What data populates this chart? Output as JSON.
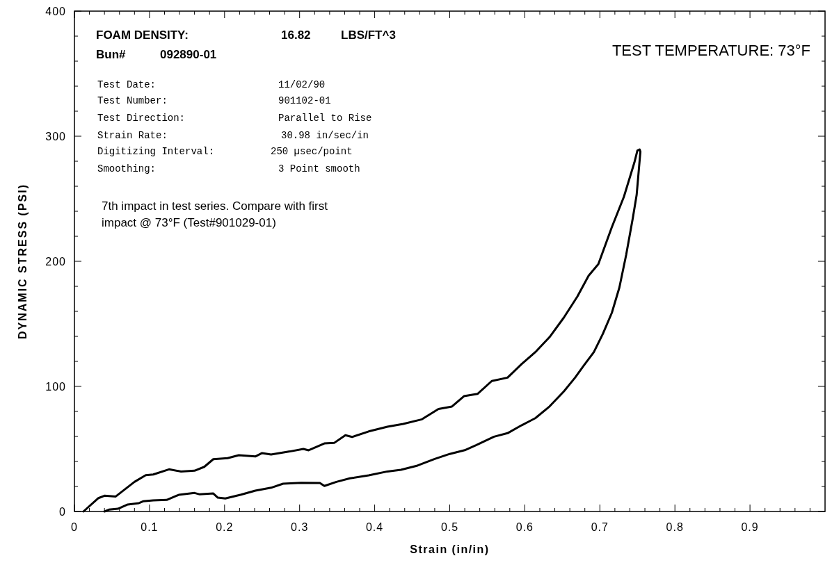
{
  "chart_data": {
    "type": "line",
    "xlabel": "Strain (in/in)",
    "ylabel": "DYNAMIC STRESS (PSI)",
    "annotations": [
      "FOAM DENSITY:",
      "16.82",
      "LBS/FT^3",
      "Bun#",
      "092890-01",
      "Test Date:",
      "11/02/90",
      "Test Number:",
      "901102-01",
      "Test Direction:",
      "Parallel to Rise",
      "Strain Rate:",
      "30.98 in/sec/in",
      "Digitizing Interval:",
      "250 µsec/point",
      "Smoothing:",
      "3 Point smooth",
      "7th impact in test series. Compare with first",
      "impact @ 73°F (Test#901029-01)",
      "TEST TEMPERATURE: 73°F"
    ],
    "xlim": [
      0,
      1
    ],
    "ylim": [
      0,
      400
    ],
    "xticks": [
      0,
      {
        "value": 0.02,
        "label": null
      },
      {
        "value": 0.04,
        "label": null
      },
      {
        "value": 0.06,
        "label": null
      },
      {
        "value": 0.08,
        "label": null
      },
      0.1,
      {
        "value": 0.12,
        "label": null
      },
      {
        "value": 0.14,
        "label": null
      },
      {
        "value": 0.16,
        "label": null
      },
      {
        "value": 0.18,
        "label": null
      },
      0.2,
      {
        "value": 0.22,
        "label": null
      },
      {
        "value": 0.24,
        "label": null
      },
      {
        "value": 0.26,
        "label": null
      },
      {
        "value": 0.28,
        "label": null
      },
      0.3,
      {
        "value": 0.32,
        "label": null
      },
      {
        "value": 0.34,
        "label": null
      },
      {
        "value": 0.36,
        "label": null
      },
      {
        "value": 0.38,
        "label": null
      },
      0.4,
      {
        "value": 0.42,
        "label": null
      },
      {
        "value": 0.44,
        "label": null
      },
      {
        "value": 0.46,
        "label": null
      },
      {
        "value": 0.48,
        "label": null
      },
      0.5,
      {
        "value": 0.52,
        "label": null
      },
      {
        "value": 0.54,
        "label": null
      },
      {
        "value": 0.56,
        "label": null
      },
      {
        "value": 0.58,
        "label": null
      },
      0.6,
      {
        "value": 0.62,
        "label": null
      },
      {
        "value": 0.64,
        "label": null
      },
      {
        "value": 0.66,
        "label": null
      },
      {
        "value": 0.68,
        "label": null
      },
      0.7,
      {
        "value": 0.72,
        "label": null
      },
      {
        "value": 0.74,
        "label": null
      },
      {
        "value": 0.76,
        "label": null
      },
      {
        "value": 0.78,
        "label": null
      },
      0.8,
      {
        "value": 0.82,
        "label": null
      },
      {
        "value": 0.84,
        "label": null
      },
      {
        "value": 0.86,
        "label": null
      },
      {
        "value": 0.88,
        "label": null
      },
      0.9,
      {
        "value": 0.92,
        "label": null
      },
      {
        "value": 0.94,
        "label": null
      },
      {
        "value": 0.96,
        "label": null
      },
      {
        "value": 0.98,
        "label": null
      }
    ],
    "yticks": [
      0,
      {
        "value": 20,
        "label": null
      },
      {
        "value": 40,
        "label": null
      },
      {
        "value": 60,
        "label": null
      },
      {
        "value": 80,
        "label": null
      },
      100,
      {
        "value": 120,
        "label": null
      },
      {
        "value": 140,
        "label": null
      },
      {
        "value": 160,
        "label": null
      },
      {
        "value": 180,
        "label": null
      },
      200,
      {
        "value": 220,
        "label": null
      },
      {
        "value": 240,
        "label": null
      },
      {
        "value": 260,
        "label": null
      },
      {
        "value": 280,
        "label": null
      },
      300,
      {
        "value": 320,
        "label": null
      },
      {
        "value": 340,
        "label": null
      },
      {
        "value": 360,
        "label": null
      },
      {
        "value": 380,
        "label": null
      },
      400
    ],
    "marker": "none",
    "line_style": "solid",
    "series": [
      {
        "color": "#000000",
        "x": [
          0.012,
          0.032,
          0.04,
          0.055,
          0.08,
          0.095,
          0.105,
          0.126,
          0.142,
          0.16,
          0.173,
          0.185,
          0.204,
          0.219,
          0.241,
          0.25,
          0.262,
          0.287,
          0.305,
          0.312,
          0.333,
          0.346,
          0.361,
          0.37,
          0.392,
          0.417,
          0.438,
          0.463,
          0.485,
          0.503,
          0.519,
          0.537,
          0.556,
          0.577,
          0.596,
          0.614,
          0.633,
          0.652,
          0.67,
          0.685,
          0.698,
          0.716,
          0.732,
          0.746,
          0.75,
          0.753,
          0.754,
          0.749,
          0.744,
          0.735,
          0.726,
          0.716,
          0.704,
          0.692,
          0.679,
          0.667,
          0.652,
          0.633,
          0.614,
          0.596,
          0.577,
          0.559,
          0.535,
          0.52,
          0.5,
          0.48,
          0.457,
          0.435,
          0.417,
          0.392,
          0.367,
          0.349,
          0.333,
          0.327,
          0.302,
          0.278,
          0.262,
          0.241,
          0.222,
          0.201,
          0.191,
          0.185,
          0.167,
          0.16,
          0.139,
          0.123,
          0.105,
          0.092,
          0.086,
          0.071,
          0.058,
          0.046,
          0.04
        ],
        "values": [
          0,
          10.7,
          12.6,
          12,
          23.7,
          29,
          29.6,
          33.7,
          32,
          32.6,
          35.7,
          41.8,
          42.6,
          45,
          44,
          46.7,
          45.6,
          48,
          50,
          48.9,
          54.4,
          54.8,
          61,
          59.6,
          64,
          67.8,
          70,
          73.7,
          82,
          83.9,
          92.2,
          94,
          104.3,
          107,
          118,
          127.4,
          139.4,
          155,
          171.8,
          188.5,
          197.8,
          227.4,
          251.5,
          279,
          288.5,
          289.4,
          287.6,
          253,
          234.8,
          205,
          179,
          158.9,
          142,
          127.4,
          117,
          107,
          96,
          84,
          74.6,
          69,
          62.6,
          59.8,
          53,
          49,
          46,
          42,
          36.7,
          33.3,
          32,
          28.9,
          26.5,
          23.7,
          20.4,
          22.8,
          22.9,
          22.2,
          19,
          16.7,
          13.5,
          10.4,
          11.1,
          14.4,
          13.7,
          14.8,
          13.3,
          9.3,
          8.9,
          8.2,
          6.7,
          5.6,
          2.2,
          1.5,
          0
        ]
      }
    ]
  }
}
